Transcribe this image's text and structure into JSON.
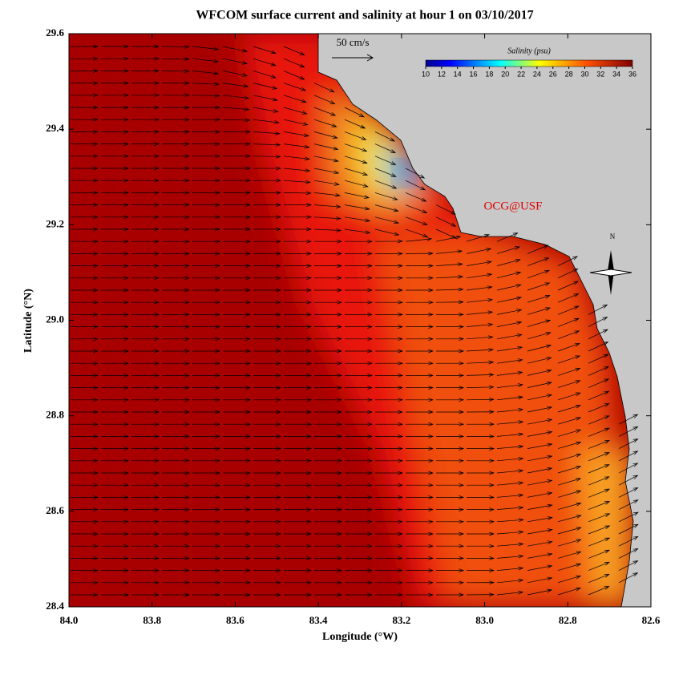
{
  "title": "WFCOM surface current and salinity at hour 1 on 03/10/2017",
  "map": {
    "xlabel": "Longitude (°W)",
    "ylabel": "Latitude (°N)",
    "xlim": [
      84.0,
      82.6
    ],
    "ylim": [
      28.4,
      29.6
    ],
    "xticks": [
      {
        "value": 84.0,
        "label": "84.0"
      },
      {
        "value": 83.8,
        "label": "83.8"
      },
      {
        "value": 83.6,
        "label": "83.6"
      },
      {
        "value": 83.4,
        "label": "83.4"
      },
      {
        "value": 83.2,
        "label": "83.2"
      },
      {
        "value": 83.0,
        "label": "83.0"
      },
      {
        "value": 82.8,
        "label": "82.8"
      },
      {
        "value": 82.6,
        "label": "82.6"
      }
    ],
    "yticks": [
      {
        "value": 28.4,
        "label": "28.4"
      },
      {
        "value": 28.6,
        "label": "28.6"
      },
      {
        "value": 28.8,
        "label": "28.8"
      },
      {
        "value": 29.0,
        "label": "29.0"
      },
      {
        "value": 29.2,
        "label": "29.2"
      },
      {
        "value": 29.4,
        "label": "29.4"
      },
      {
        "value": 29.6,
        "label": "29.6"
      }
    ],
    "scale_label": "50 cm/s",
    "watermark": "OCG@USF",
    "compass": "N"
  },
  "colorbar": {
    "title": "Salinity (psu)",
    "lim": [
      10,
      36
    ],
    "ticks": [
      10,
      12,
      14,
      16,
      18,
      20,
      22,
      24,
      26,
      28,
      30,
      32,
      34,
      36
    ]
  }
}
